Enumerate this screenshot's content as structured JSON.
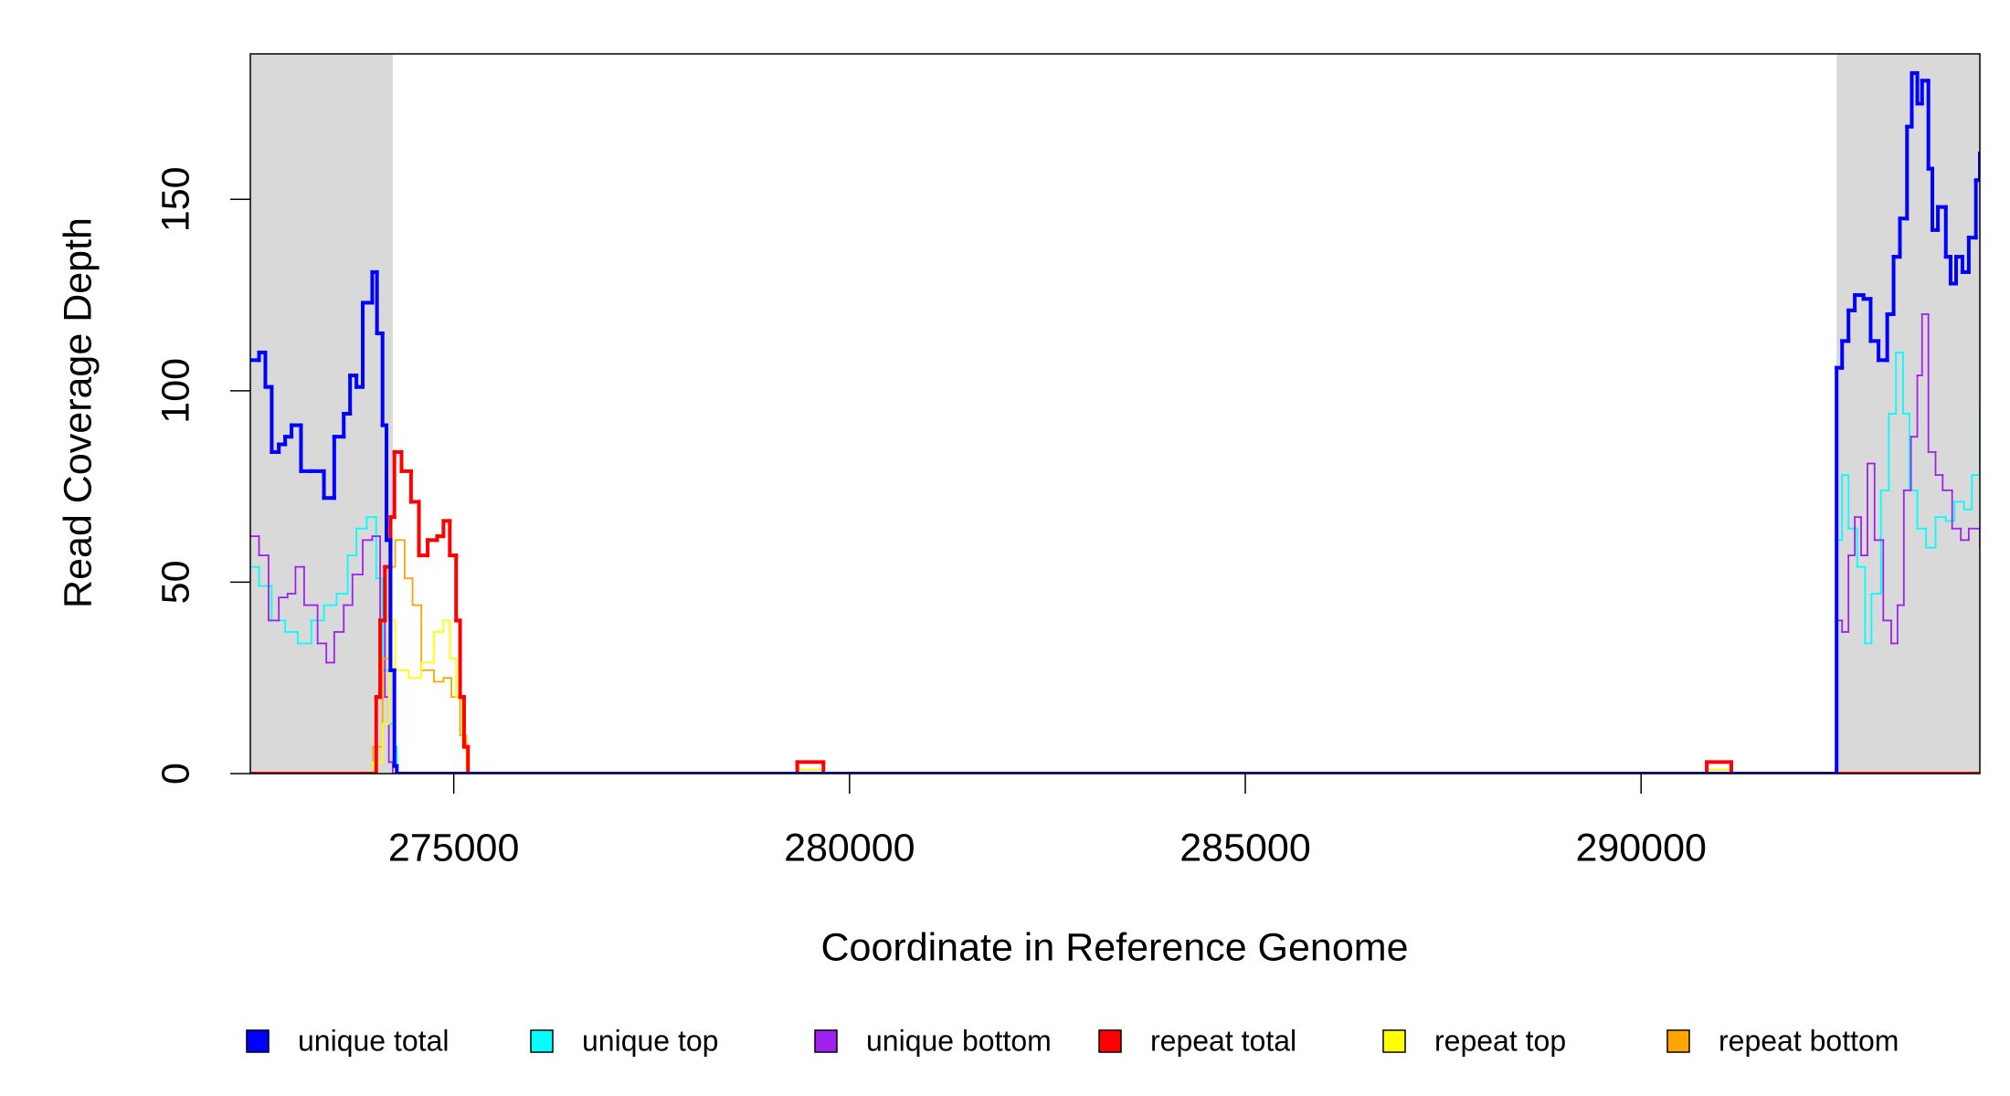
{
  "chart_data": {
    "type": "step",
    "x_label": "Coordinate in Reference Genome",
    "y_label": "Read Coverage Depth",
    "xlim": [
      272430,
      294280
    ],
    "ylim": [
      0,
      188
    ],
    "xticks": [
      275000,
      280000,
      285000,
      290000
    ],
    "yticks": [
      0,
      50,
      100,
      150
    ],
    "shaded_regions": [
      [
        272430,
        274230
      ],
      [
        292470,
        294280
      ]
    ],
    "shade_color": "#d9d9d9",
    "series": [
      {
        "name": "unique total",
        "color": "#0000ff",
        "x": [
          272430,
          272540,
          272620,
          272700,
          272790,
          272870,
          272950,
          273070,
          273200,
          273360,
          273490,
          273610,
          273690,
          273770,
          273850,
          273970,
          274030,
          274100,
          274150,
          274200,
          274250,
          274280,
          292470,
          292540,
          292620,
          292700,
          292810,
          292900,
          293000,
          293110,
          293190,
          293270,
          293360,
          293420,
          293490,
          293550,
          293630,
          293680,
          293750,
          293850,
          293910,
          293980,
          294060,
          294140,
          294230,
          294280
        ],
        "values": [
          108,
          110,
          101,
          84,
          86,
          88,
          91,
          79,
          79,
          72,
          88,
          94,
          104,
          101,
          123,
          131,
          115,
          91,
          61,
          27,
          2,
          0,
          106,
          113,
          121,
          125,
          124,
          113,
          108,
          120,
          135,
          145,
          169,
          183,
          175,
          181,
          158,
          142,
          148,
          135,
          128,
          135,
          131,
          140,
          155,
          162
        ]
      },
      {
        "name": "unique top",
        "color": "#00ffff",
        "x": [
          272430,
          272540,
          272700,
          272870,
          273030,
          273200,
          273360,
          273520,
          273660,
          273770,
          273900,
          274020,
          274100,
          274180,
          274250,
          274280,
          292470,
          292540,
          292620,
          292730,
          292830,
          292910,
          293030,
          293130,
          293220,
          293310,
          293390,
          293490,
          293600,
          293720,
          293850,
          293960,
          294080,
          294180,
          294280
        ],
        "values": [
          54,
          49,
          40,
          37,
          34,
          40,
          44,
          47,
          57,
          64,
          67,
          51,
          27,
          13,
          7,
          0,
          61,
          78,
          64,
          54,
          34,
          47,
          74,
          94,
          110,
          94,
          74,
          64,
          59,
          67,
          66,
          71,
          69,
          78,
          96
        ]
      },
      {
        "name": "unique bottom",
        "color": "#a020f0",
        "x": [
          272430,
          272540,
          272660,
          272790,
          272900,
          273000,
          273110,
          273280,
          273390,
          273490,
          273610,
          273720,
          273850,
          273970,
          274070,
          274130,
          274180,
          274230,
          292470,
          292540,
          292620,
          292700,
          292780,
          292860,
          292950,
          293060,
          293160,
          293240,
          293320,
          293410,
          293490,
          293550,
          293630,
          293720,
          293810,
          293930,
          294040,
          294140,
          294280
        ],
        "values": [
          62,
          57,
          40,
          46,
          47,
          54,
          44,
          34,
          29,
          37,
          44,
          52,
          61,
          62,
          40,
          20,
          3,
          0,
          40,
          37,
          57,
          67,
          57,
          81,
          61,
          40,
          34,
          44,
          74,
          88,
          104,
          120,
          84,
          78,
          74,
          64,
          61,
          64,
          59
        ]
      },
      {
        "name": "repeat total",
        "color": "#ff0000",
        "x": [
          272430,
          274020,
          274070,
          274130,
          274200,
          274250,
          274340,
          274460,
          274560,
          274670,
          274790,
          274870,
          274950,
          275030,
          275080,
          275130,
          275180,
          279340,
          279670,
          290830,
          291140,
          294280
        ],
        "values": [
          0,
          20,
          40,
          54,
          67,
          84,
          79,
          71,
          57,
          61,
          62,
          66,
          57,
          40,
          20,
          7,
          0,
          3,
          0,
          3,
          0,
          0
        ]
      },
      {
        "name": "repeat top",
        "color": "#ffff00",
        "x": [
          272430,
          273980,
          274100,
          274180,
          274260,
          274430,
          274590,
          274750,
          274870,
          274950,
          275030,
          275110,
          275160,
          279340,
          279670,
          290830,
          291140,
          294280
        ],
        "values": [
          0,
          3,
          13,
          40,
          27,
          25,
          29,
          37,
          40,
          30,
          20,
          7,
          0,
          1,
          0,
          1,
          0,
          0
        ]
      },
      {
        "name": "repeat bottom",
        "color": "#ffa500",
        "x": [
          272430,
          273980,
          274100,
          274180,
          274260,
          274380,
          274480,
          274590,
          274750,
          274870,
          274970,
          275080,
          275160,
          279340,
          279670,
          290830,
          291140,
          294280
        ],
        "values": [
          0,
          7,
          30,
          54,
          61,
          51,
          44,
          27,
          24,
          25,
          20,
          10,
          0,
          1,
          0,
          1,
          0,
          0
        ]
      }
    ]
  }
}
